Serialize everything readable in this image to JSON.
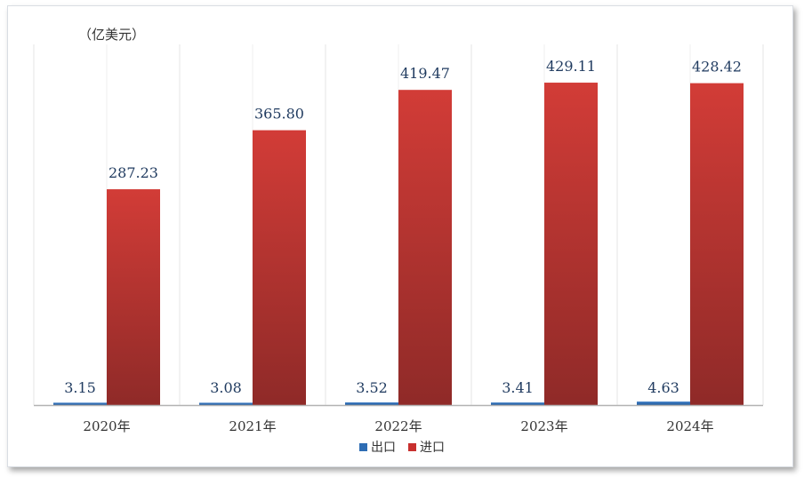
{
  "chart_data": {
    "type": "bar",
    "unit_label": "（亿美元）",
    "categories": [
      "2020年",
      "2021年",
      "2022年",
      "2023年",
      "2024年"
    ],
    "series": [
      {
        "name": "出口",
        "color": "#2e6db4",
        "values": [
          3.15,
          3.08,
          3.52,
          3.41,
          4.63
        ]
      },
      {
        "name": "进口",
        "color": "#c8302e",
        "values": [
          287.23,
          365.8,
          419.47,
          429.11,
          428.42
        ]
      }
    ],
    "value_labels": {
      "出口": [
        "3.15",
        "3.08",
        "3.52",
        "3.41",
        "4.63"
      ],
      "进口": [
        "287.23",
        "365.80",
        "419.47",
        "429.11",
        "428.42"
      ]
    },
    "ylim": [
      0,
      480
    ],
    "grid": true,
    "legend_position": "bottom"
  }
}
